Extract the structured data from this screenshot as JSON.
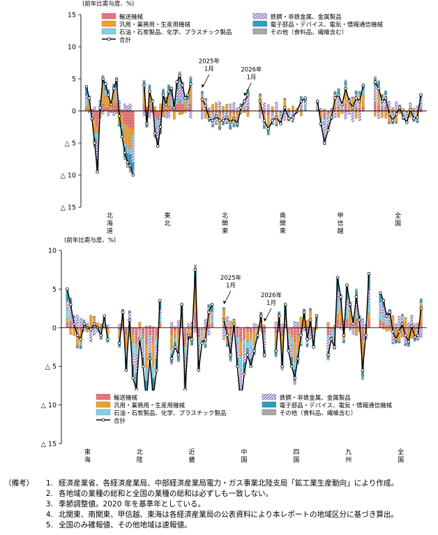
{
  "notes": {
    "header": "（備考）",
    "items": [
      {
        "num": "1.",
        "text": "経済産業省、各経済産業局、中部経済産業局電力・ガス事業北陸支局「鉱工業生産動向」により作成。"
      },
      {
        "num": "2.",
        "text": "各地域の業種の総和と全国の業種の総和は必ずしも一致しない。"
      },
      {
        "num": "3.",
        "text": "季節調整値。2020 年を基準年としている。"
      },
      {
        "num": "4.",
        "text": "北関東、南関東、甲信越、東海は各経済産業局の公表資料により本レポートの地域区分に基づき算出。"
      },
      {
        "num": "5.",
        "text": "全国のみ確報値、その他地域は速報値。"
      }
    ]
  },
  "colors": {
    "transport": "#e8505b",
    "general_machinery": "#f0a030",
    "petroleum_chemical": "#5ec8e0",
    "steel_metal": "#7f5fbf",
    "electronics": "#2e9cc0",
    "other": "#a8a8a8",
    "total": "#000000"
  },
  "chart_data": [
    {
      "type": "bar",
      "stacked": true,
      "ylabel": "(前年比寄与度、%)",
      "ylim": [
        -15,
        15
      ],
      "yticks": [
        15,
        10,
        5,
        0,
        -5,
        -10,
        -15
      ],
      "ytick_labels": [
        "15",
        "10",
        "5",
        "0",
        "△ 5",
        "△ 10",
        "△ 15"
      ],
      "legend_placement": "top",
      "annotations": [
        {
          "text": "2025年\n1月",
          "group": 2,
          "index": 0
        },
        {
          "text": "2026年\n1月",
          "group": 2,
          "index": 12
        }
      ],
      "series_names": [
        "輸送機械",
        "汎用・業務用・生産用機械",
        "石油・石炭製品、化学、プラスチック製品",
        "鉄鋼・非鉄金属、金属製品",
        "電子部品・デバイス、電気・情報通信機械",
        "その他（食料品、繊維含む）",
        "合計"
      ],
      "groups": [
        {
          "name": "北\n海\n道",
          "totals": [
            3.8,
            2.0,
            -1.2,
            -5.0,
            -9.5,
            0.5,
            5.0,
            4.2,
            2.5,
            1.0,
            3.5,
            4.8,
            -0.8,
            -4.0,
            -6.5,
            -8.0,
            -8.5,
            -10.0
          ]
        },
        {
          "name": "東\n北",
          "totals": [
            4.0,
            -2.0,
            3.0,
            1.5,
            -3.5,
            -5.5,
            -2.5,
            2.5,
            1.0,
            3.0,
            3.5,
            0.5,
            4.5,
            5.5,
            4.0,
            2.0,
            2.5,
            4.2
          ]
        },
        {
          "name": "北\n関\n東",
          "totals": [
            1.8,
            0.8,
            -1.2,
            -1.5,
            -0.8,
            -1.5,
            -1.5,
            -1.0,
            -1.8,
            -1.2,
            -2.0,
            0.5,
            1.5,
            2.5
          ]
        },
        {
          "name": "南\n関\n東",
          "totals": [
            1.5,
            -1.5,
            -2.8,
            -1.5,
            -1.0,
            -2.0,
            0.5,
            -1.2,
            -1.0,
            0.0,
            1.5,
            2.0
          ]
        },
        {
          "name": "甲\n信\n越",
          "totals": [
            1.5,
            -2.0,
            -5.0,
            -3.0,
            -1.0,
            2.0,
            2.5,
            1.0,
            3.5,
            1.5,
            0.5,
            2.0,
            1.5,
            4.0
          ]
        },
        {
          "name": "全\n国",
          "totals": [
            4.5,
            3.5,
            1.5,
            2.0,
            -0.5,
            -1.5,
            -0.5,
            0.5,
            -1.0,
            -1.8,
            0.2,
            -1.2,
            -1.0,
            2.5
          ]
        }
      ]
    },
    {
      "type": "bar",
      "stacked": true,
      "ylabel": "(前年比寄与度、%)",
      "ylim": [
        -15,
        10
      ],
      "yticks": [
        10,
        5,
        0,
        -5,
        -10,
        -15
      ],
      "ytick_labels": [
        "10",
        "5",
        "0",
        "△ 5",
        "△ 10",
        "△ 15"
      ],
      "legend_placement": "bottom",
      "annotations": [
        {
          "text": "2025年\n1月",
          "group": 3,
          "index": 0
        },
        {
          "text": "2026年\n1月",
          "group": 3,
          "index": 12
        }
      ],
      "series_names": [
        "輸送機械",
        "汎用・業務用・生産用機械",
        "石油・石炭製品、化学、プラスチック製品",
        "鉄鋼・非鉄金属、金属製品",
        "電子部品・デバイス、電気・情報通信機械",
        "その他（食料品、繊維含む）",
        "合計"
      ],
      "groups": [
        {
          "name": "東\n海",
          "totals": [
            5.0,
            3.0,
            0.5,
            -1.0,
            -1.5,
            0.5,
            0.0,
            -0.2,
            0.5,
            0.0,
            -1.0,
            1.5,
            -1.5
          ]
        },
        {
          "name": "北\n陸",
          "totals": [
            -2.0,
            2.0,
            -5.5,
            1.0,
            -6.5,
            -8.0,
            -1.5,
            -5.0,
            -9.5,
            -4.0,
            -9.0,
            -5.5,
            3.5
          ]
        },
        {
          "name": "近\n畿",
          "totals": [
            -4.0,
            -2.5,
            -3.5,
            3.0,
            -8.0,
            -1.0,
            -1.5,
            7.5,
            -5.5,
            -2.0,
            -1.5,
            2.0,
            3.0
          ]
        },
        {
          "name": "中\n国",
          "totals": [
            1.0,
            -1.0,
            -3.5,
            0.5,
            -5.0,
            -10.0,
            -6.0,
            -3.5,
            -5.0,
            -3.0,
            -1.0,
            1.5,
            -3.5
          ]
        },
        {
          "name": "四\n国",
          "totals": [
            -3.0,
            1.5,
            -5.0,
            3.0,
            -3.0,
            -5.0,
            -6.5,
            -4.0,
            -1.0,
            2.0,
            -1.5,
            1.0,
            -2.5,
            1.5
          ]
        },
        {
          "name": "九\n州",
          "totals": [
            -3.5,
            -1.5,
            -2.5,
            6.5,
            4.0,
            -1.0,
            5.5,
            3.0,
            0.5,
            4.0,
            1.0,
            -5.5,
            -1.0,
            7.0
          ]
        },
        {
          "name": "全\n国",
          "totals": [
            4.5,
            3.5,
            1.5,
            2.0,
            -0.5,
            -1.5,
            -0.5,
            0.5,
            -1.0,
            -1.8,
            0.2,
            -1.2,
            -1.0,
            2.5
          ]
        }
      ]
    }
  ]
}
